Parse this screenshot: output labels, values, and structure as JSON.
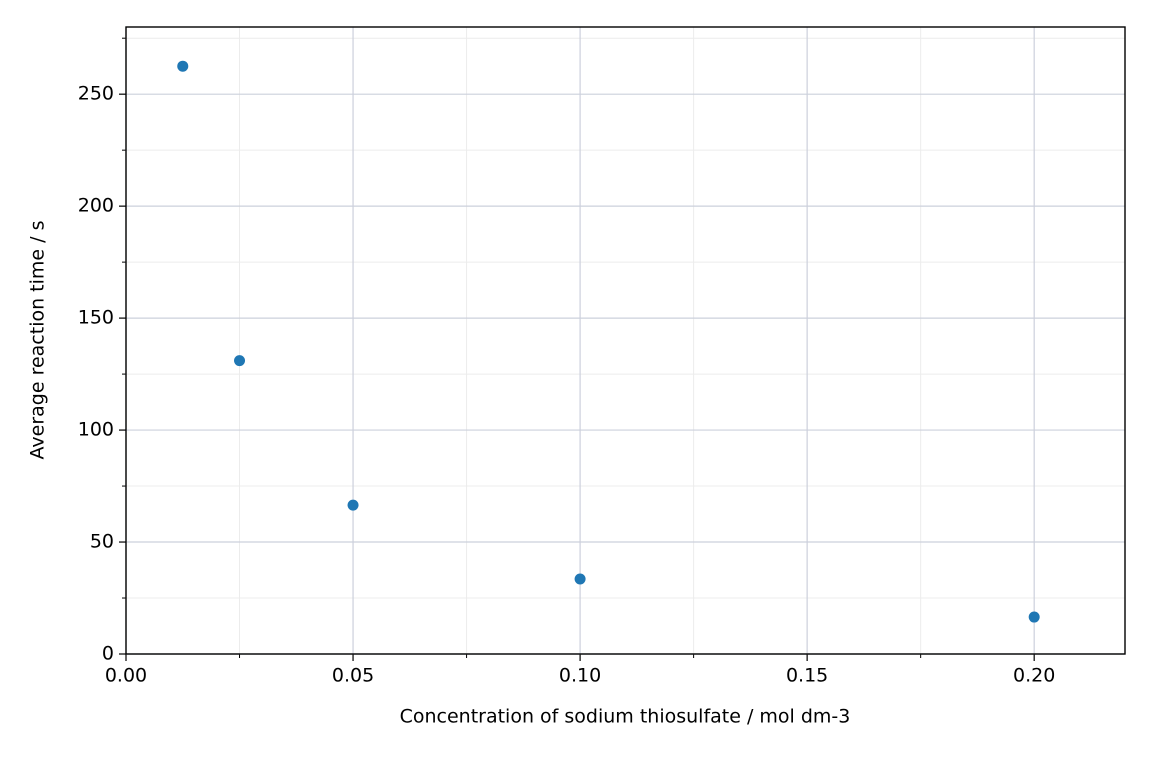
{
  "chart_data": {
    "type": "scatter",
    "x_label": "Concentration of sodium thiosulfate / mol dm-3",
    "y_label": "Average reaction time / s",
    "x": [
      0.0125,
      0.025,
      0.05,
      0.1,
      0.2
    ],
    "series": [
      {
        "color": "#1f77b4",
        "values": [
          262.5,
          131,
          66.5,
          33.5,
          16.5
        ]
      }
    ],
    "xlim": [
      0,
      0.22
    ],
    "xticks": [
      {
        "value": 0,
        "label": "0.00"
      },
      {
        "value": 0.05,
        "label": "0.05"
      },
      {
        "value": 0.1,
        "label": "0.10"
      },
      {
        "value": 0.15,
        "label": "0.15"
      },
      {
        "value": 0.2,
        "label": "0.20"
      }
    ],
    "xminorticks": [
      0.025,
      0.075,
      0.125,
      0.175
    ],
    "ylim": [
      0,
      280
    ],
    "yticks": [
      0,
      50,
      100,
      150,
      200,
      250
    ],
    "yminorticks": [
      25,
      75,
      125,
      175,
      225,
      275
    ],
    "grid": true
  }
}
